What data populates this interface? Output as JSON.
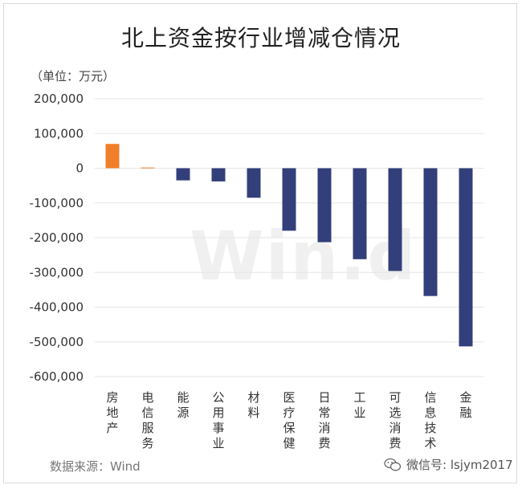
{
  "chart_data": {
    "type": "bar",
    "title": "北上资金按行业增减仓情况",
    "unit_label": "（单位：万元）",
    "categories": [
      "房地产",
      "电信服务",
      "能源",
      "公用事业",
      "材料",
      "医疗保健",
      "日常消费",
      "工业",
      "可选消费",
      "信息技术",
      "金融"
    ],
    "values": [
      70000,
      2000,
      -35000,
      -38000,
      -85000,
      -180000,
      -213000,
      -262000,
      -296000,
      -368000,
      -513000
    ],
    "ylim": [
      -600000,
      200000
    ],
    "yticks": [
      200000,
      100000,
      0,
      -100000,
      -200000,
      -300000,
      -400000,
      -500000,
      -600000
    ],
    "ytick_labels": [
      "200,000",
      "100,000",
      "0",
      "-100,000",
      "-200,000",
      "-300,000",
      "-400,000",
      "-500,000",
      "-600,000"
    ],
    "grid": true,
    "colors": {
      "positive": "#f07f2b",
      "negative": "#333f7a"
    }
  },
  "footer": {
    "source": "数据来源：Wind",
    "wechat": "微信号: lsjym2017"
  },
  "watermark": "Win.d"
}
